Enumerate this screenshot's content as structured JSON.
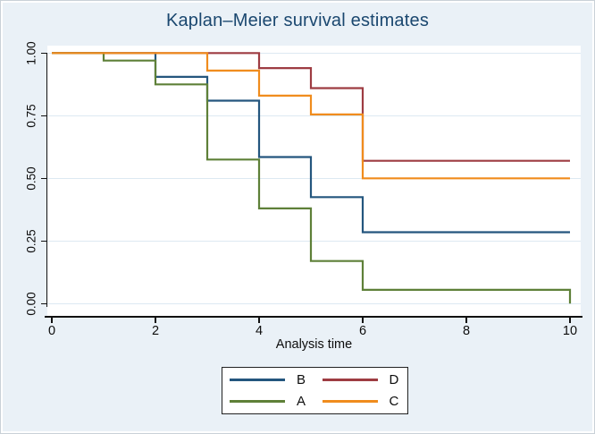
{
  "figure": {
    "background_color": "#eaf1f7",
    "plot_background_color": "#ffffff",
    "title_color": "#1a476f",
    "gridline_color": "#dde9f2"
  },
  "chart_data": {
    "type": "line",
    "style": "step",
    "title": "Kaplan–Meier survival estimates",
    "xlabel": "Analysis time",
    "ylabel": "",
    "xlim": [
      0,
      10
    ],
    "ylim": [
      0.0,
      1.0
    ],
    "grid": true,
    "legend_position": "bottom",
    "x_ticks": [
      {
        "value": 0,
        "label": "0"
      },
      {
        "value": 2,
        "label": "2"
      },
      {
        "value": 4,
        "label": "4"
      },
      {
        "value": 6,
        "label": "6"
      },
      {
        "value": 8,
        "label": "8"
      },
      {
        "value": 10,
        "label": "10"
      }
    ],
    "y_ticks": [
      {
        "value": 1.0,
        "label": "1.00"
      },
      {
        "value": 0.75,
        "label": "0.75"
      },
      {
        "value": 0.5,
        "label": "0.50"
      },
      {
        "value": 0.25,
        "label": "0.25"
      },
      {
        "value": 0.0,
        "label": "0.00"
      }
    ],
    "series": [
      {
        "name": "B",
        "color": "#24567e",
        "steps": [
          [
            0,
            1.0
          ],
          [
            2,
            0.905
          ],
          [
            3,
            0.81
          ],
          [
            4,
            0.585
          ],
          [
            5,
            0.425
          ],
          [
            6,
            0.285
          ],
          [
            10,
            0.285
          ]
        ]
      },
      {
        "name": "D",
        "color": "#9e3c42",
        "steps": [
          [
            0,
            1.0
          ],
          [
            4,
            0.94
          ],
          [
            5,
            0.86
          ],
          [
            6,
            0.57
          ],
          [
            10,
            0.57
          ]
        ]
      },
      {
        "name": "A",
        "color": "#5e8038",
        "steps": [
          [
            0,
            1.0
          ],
          [
            1,
            0.97
          ],
          [
            2,
            0.875
          ],
          [
            3,
            0.575
          ],
          [
            4,
            0.38
          ],
          [
            5,
            0.17
          ],
          [
            6,
            0.055
          ],
          [
            10,
            0.0
          ]
        ]
      },
      {
        "name": "C",
        "color": "#f08c1d",
        "steps": [
          [
            0,
            1.0
          ],
          [
            3,
            0.93
          ],
          [
            4,
            0.83
          ],
          [
            5,
            0.755
          ],
          [
            6,
            0.5
          ],
          [
            10,
            0.5
          ]
        ]
      }
    ],
    "legend": {
      "entries": [
        {
          "label": "B",
          "color": "#24567e"
        },
        {
          "label": "D",
          "color": "#9e3c42"
        },
        {
          "label": "A",
          "color": "#5e8038"
        },
        {
          "label": "C",
          "color": "#f08c1d"
        }
      ]
    }
  }
}
